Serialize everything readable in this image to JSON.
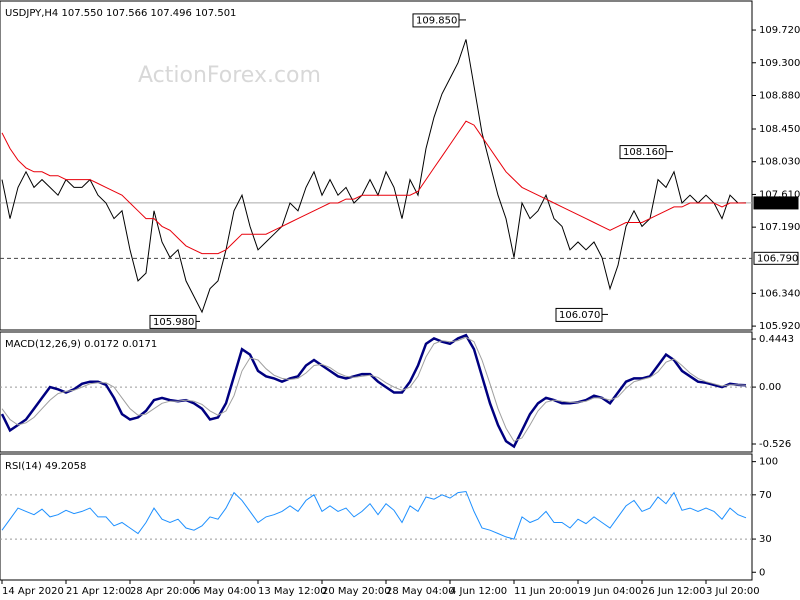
{
  "chart_data": [
    {
      "type": "line",
      "title": "USDJPY,H4 107.550 107.566 107.496 107.501",
      "watermark": "ActionForex.com",
      "categories": [
        "14 Apr 2020",
        null,
        null,
        null,
        null,
        null,
        null,
        null,
        "21 Apr 12:00",
        null,
        null,
        null,
        null,
        null,
        null,
        null,
        "28 Apr 20:00",
        null,
        null,
        null,
        null,
        null,
        null,
        null,
        "6 May 04:00",
        null,
        null,
        null,
        null,
        null,
        null,
        null,
        "13 May 12:00",
        null,
        null,
        null,
        null,
        null,
        null,
        null,
        "20 May 20:00",
        null,
        null,
        null,
        null,
        null,
        null,
        null,
        "28 May 04:00",
        null,
        null,
        null,
        null,
        null,
        null,
        null,
        "4 Jun 12:00",
        null,
        null,
        null,
        null,
        null,
        null,
        null,
        "11 Jun 20:00",
        null,
        null,
        null,
        null,
        null,
        null,
        null,
        "19 Jun 04:00",
        null,
        null,
        null,
        null,
        null,
        null,
        null,
        "26 Jun 12:00",
        null,
        null,
        null,
        null,
        null,
        null,
        null,
        "3 Jul 20:00",
        null,
        null,
        null,
        null,
        null
      ],
      "series": [
        {
          "color": "#ffffff",
          "values": [
            107.8,
            107.3,
            107.7,
            107.9,
            107.7,
            107.8,
            107.7,
            107.6,
            107.8,
            107.7,
            107.7,
            107.8,
            107.6,
            107.5,
            107.3,
            107.4,
            106.9,
            106.5,
            106.6,
            107.4,
            107.0,
            106.8,
            106.9,
            106.5,
            106.3,
            106.1,
            106.4,
            106.5,
            106.9,
            107.4,
            107.6,
            107.2,
            106.9,
            107.0,
            107.1,
            107.2,
            107.5,
            107.4,
            107.7,
            107.9,
            107.6,
            107.8,
            107.6,
            107.7,
            107.5,
            107.6,
            107.8,
            107.6,
            107.9,
            107.7,
            107.3,
            107.8,
            107.6,
            108.2,
            108.6,
            108.9,
            109.1,
            109.3,
            109.6,
            109.0,
            108.4,
            108.0,
            107.6,
            107.3,
            106.8,
            107.5,
            107.3,
            107.4,
            107.6,
            107.3,
            107.2,
            106.9,
            107.0,
            106.9,
            107.0,
            106.8,
            106.4,
            106.7,
            107.2,
            107.4,
            107.2,
            107.3,
            107.8,
            107.7,
            107.9,
            107.5,
            107.6,
            107.5,
            107.6,
            107.5,
            107.3,
            107.6,
            107.5,
            107.501
          ]
        },
        {
          "color": "#e8000b",
          "values": [
            108.4,
            108.2,
            108.05,
            107.95,
            107.9,
            107.9,
            107.85,
            107.85,
            107.8,
            107.8,
            107.8,
            107.8,
            107.75,
            107.7,
            107.65,
            107.6,
            107.5,
            107.4,
            107.3,
            107.3,
            107.2,
            107.15,
            107.05,
            106.95,
            106.9,
            106.85,
            106.85,
            106.85,
            106.9,
            107.0,
            107.1,
            107.1,
            107.1,
            107.1,
            107.15,
            107.2,
            107.25,
            107.3,
            107.35,
            107.4,
            107.45,
            107.5,
            107.5,
            107.55,
            107.55,
            107.6,
            107.6,
            107.6,
            107.6,
            107.6,
            107.6,
            107.6,
            107.65,
            107.8,
            107.95,
            108.1,
            108.25,
            108.4,
            108.55,
            108.5,
            108.35,
            108.2,
            108.05,
            107.9,
            107.8,
            107.7,
            107.65,
            107.6,
            107.55,
            107.5,
            107.45,
            107.4,
            107.35,
            107.3,
            107.25,
            107.2,
            107.15,
            107.2,
            107.25,
            107.25,
            107.25,
            107.3,
            107.35,
            107.4,
            107.45,
            107.45,
            107.5,
            107.5,
            107.5,
            107.5,
            107.45,
            107.5,
            107.5,
            107.5
          ]
        }
      ],
      "ylim": [
        105.87,
        110.08
      ],
      "yticks": [
        {
          "value": 109.72,
          "label": "109.720"
        },
        {
          "value": 109.3,
          "label": "109.300"
        },
        {
          "value": 108.88,
          "label": "108.880"
        },
        {
          "value": 108.45,
          "label": "108.450"
        },
        {
          "value": 108.03,
          "label": "108.030"
        },
        {
          "value": 107.61,
          "label": "107.610"
        },
        {
          "value": 107.19,
          "label": "107.190"
        },
        {
          "value": 106.34,
          "label": "106.340"
        },
        {
          "value": 105.92,
          "label": "105.920"
        }
      ],
      "price_lines": [
        {
          "value": 107.501,
          "label": "107.501"
        },
        {
          "value": 106.79,
          "label": "106.790"
        }
      ],
      "annotations": [
        {
          "value": 109.85,
          "label": "109.850"
        },
        {
          "value": 108.16,
          "label": "108.160"
        },
        {
          "value": 105.98,
          "label": "105.980"
        },
        {
          "value": 106.07,
          "label": "106.070"
        }
      ]
    },
    {
      "type": "line",
      "title": "MACD(12,26,9) 0.0172 0.0171",
      "series": [
        {
          "color": "#000080",
          "values": [
            -0.25,
            -0.4,
            -0.35,
            -0.3,
            -0.2,
            -0.1,
            0.0,
            -0.02,
            -0.05,
            -0.02,
            0.03,
            0.05,
            0.05,
            0.02,
            -0.1,
            -0.25,
            -0.3,
            -0.28,
            -0.22,
            -0.12,
            -0.1,
            -0.12,
            -0.13,
            -0.12,
            -0.15,
            -0.2,
            -0.3,
            -0.28,
            -0.15,
            0.1,
            0.35,
            0.3,
            0.15,
            0.1,
            0.08,
            0.05,
            0.08,
            0.1,
            0.2,
            0.25,
            0.2,
            0.15,
            0.1,
            0.08,
            0.1,
            0.12,
            0.12,
            0.05,
            0.0,
            -0.05,
            -0.05,
            0.05,
            0.2,
            0.4,
            0.45,
            0.42,
            0.4,
            0.45,
            0.48,
            0.35,
            0.1,
            -0.15,
            -0.35,
            -0.5,
            -0.55,
            -0.4,
            -0.25,
            -0.15,
            -0.1,
            -0.12,
            -0.15,
            -0.15,
            -0.14,
            -0.12,
            -0.08,
            -0.1,
            -0.15,
            -0.05,
            0.05,
            0.08,
            0.08,
            0.1,
            0.2,
            0.3,
            0.25,
            0.15,
            0.1,
            0.05,
            0.04,
            0.02,
            0.0,
            0.03,
            0.02,
            0.0172
          ]
        },
        {
          "color": "#a0a0a0",
          "values": [
            -0.2,
            -0.3,
            -0.35,
            -0.33,
            -0.28,
            -0.2,
            -0.12,
            -0.06,
            -0.04,
            -0.03,
            0.0,
            0.03,
            0.04,
            0.04,
            0.0,
            -0.1,
            -0.2,
            -0.26,
            -0.25,
            -0.2,
            -0.15,
            -0.13,
            -0.13,
            -0.12,
            -0.13,
            -0.16,
            -0.22,
            -0.26,
            -0.22,
            -0.08,
            0.15,
            0.27,
            0.25,
            0.17,
            0.11,
            0.08,
            0.07,
            0.08,
            0.13,
            0.2,
            0.21,
            0.18,
            0.13,
            0.1,
            0.09,
            0.1,
            0.11,
            0.09,
            0.04,
            0.0,
            -0.03,
            0.0,
            0.1,
            0.28,
            0.4,
            0.43,
            0.42,
            0.43,
            0.46,
            0.42,
            0.25,
            0.03,
            -0.2,
            -0.38,
            -0.5,
            -0.47,
            -0.35,
            -0.22,
            -0.14,
            -0.12,
            -0.13,
            -0.14,
            -0.14,
            -0.13,
            -0.1,
            -0.1,
            -0.12,
            -0.09,
            -0.01,
            0.05,
            0.07,
            0.09,
            0.14,
            0.23,
            0.26,
            0.2,
            0.13,
            0.08,
            0.05,
            0.03,
            0.01,
            0.02,
            0.02,
            0.0171
          ]
        }
      ],
      "ylim": [
        -0.6,
        0.5
      ],
      "yticks": [
        0.4443,
        {
          "value": 0,
          "label": "0.00"
        },
        -0.526
      ],
      "levels": [
        0
      ]
    },
    {
      "type": "line",
      "title": "RSI(14) 49.2058",
      "series": [
        {
          "color": "#1e90ff",
          "values": [
            38,
            48,
            58,
            55,
            52,
            57,
            50,
            52,
            56,
            53,
            55,
            58,
            50,
            50,
            42,
            45,
            40,
            35,
            45,
            58,
            48,
            45,
            48,
            40,
            38,
            42,
            50,
            48,
            58,
            72,
            65,
            55,
            45,
            50,
            52,
            55,
            60,
            55,
            65,
            70,
            55,
            60,
            55,
            58,
            50,
            55,
            62,
            52,
            62,
            56,
            45,
            60,
            55,
            68,
            66,
            70,
            67,
            72,
            73,
            55,
            40,
            38,
            35,
            32,
            30,
            50,
            45,
            48,
            55,
            45,
            45,
            40,
            48,
            44,
            50,
            45,
            40,
            50,
            60,
            65,
            55,
            58,
            68,
            62,
            72,
            56,
            58,
            55,
            58,
            55,
            48,
            58,
            52,
            49.2058
          ]
        }
      ],
      "ylim": [
        -7,
        106
      ],
      "yticks": [
        100,
        70,
        30,
        0
      ],
      "levels": [
        70,
        30
      ]
    }
  ]
}
